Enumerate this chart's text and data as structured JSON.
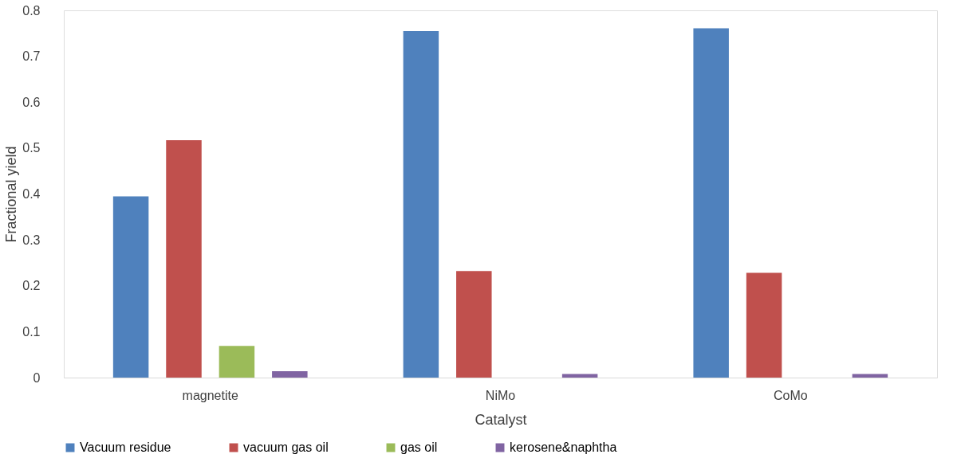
{
  "chart_data": {
    "type": "bar",
    "xlabel": "Catalyst",
    "ylabel": "Fractional yield",
    "categories": [
      "magnetite",
      "NiMo",
      "CoMo"
    ],
    "series": [
      {
        "name": "Vacuum residue",
        "color": "#4f81bd",
        "values": [
          0.395,
          0.755,
          0.761
        ]
      },
      {
        "name": "vacuum gas oil",
        "color": "#c0504d",
        "values": [
          0.517,
          0.232,
          0.228
        ]
      },
      {
        "name": "gas oil",
        "color": "#9bbb59",
        "values": [
          0.069,
          0,
          0
        ]
      },
      {
        "name": "kerosene&naphtha",
        "color": "#8064a2",
        "values": [
          0.014,
          0.008,
          0.008
        ]
      }
    ],
    "ylim": [
      0,
      0.8
    ],
    "yticks": [
      0,
      0.1,
      0.2,
      0.3,
      0.4,
      0.5,
      0.6,
      0.7,
      0.8
    ],
    "grid": false,
    "legend": "bottom"
  }
}
